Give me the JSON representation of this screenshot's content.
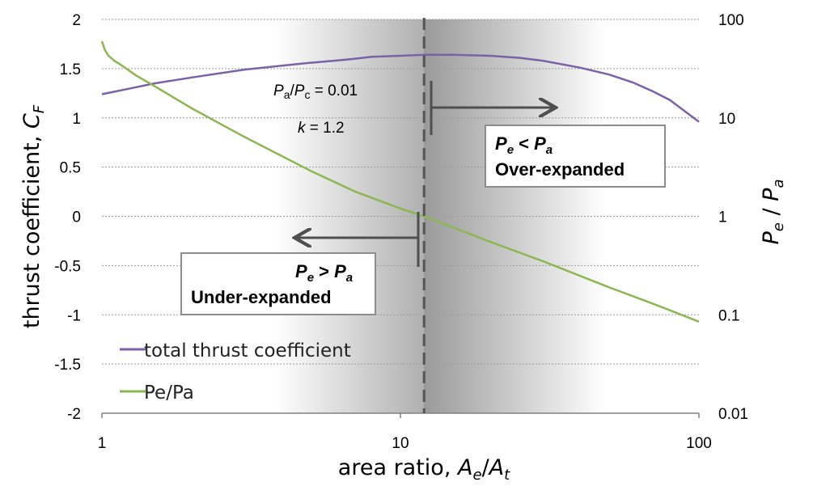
{
  "chart_data": {
    "type": "line",
    "title": "",
    "xlabel": "area ratio, A_e/A_t",
    "xlabel_parts": {
      "main": "area ratio, ",
      "var": "A",
      "sub1": "e",
      "slash": "/",
      "var2": "A",
      "sub2": "t"
    },
    "ylabel_left_parts": {
      "main": "thrust coefficient, ",
      "var": "C",
      "sub": "F"
    },
    "ylabel_right_parts": {
      "var": "P",
      "sub": "e",
      "slash": " / ",
      "var2": "P",
      "sub2": "a"
    },
    "x_scale": "log",
    "xlim": [
      1,
      100
    ],
    "x_ticks": [
      1,
      10,
      100
    ],
    "x_tick_labels": [
      "1",
      "10",
      "100"
    ],
    "y_left_lim": [
      -2,
      2
    ],
    "y_left_ticks": [
      2,
      1.5,
      1,
      0.5,
      0,
      -0.5,
      -1,
      -1.5,
      -2
    ],
    "y_left_tick_labels": [
      "2",
      "1.5",
      "1",
      "0.5",
      "0",
      "-0.5",
      "-1",
      "-1.5",
      "-2"
    ],
    "y_right_scale": "log",
    "y_right_lim": [
      0.01,
      100
    ],
    "y_right_ticks": [
      100,
      10,
      1,
      0.1,
      0.01
    ],
    "y_right_tick_labels": [
      "100",
      "10",
      "1",
      "0.1",
      "0.01"
    ],
    "grid": "horizontal dotted",
    "legend_position": "bottom-left",
    "series": [
      {
        "name": "total thrust coefficient",
        "axis": "left",
        "color": "#7b62a8",
        "x": [
          1,
          1.25,
          1.5,
          2,
          3,
          4,
          5,
          6,
          7,
          8,
          10,
          12,
          15,
          20,
          25,
          30,
          40,
          50,
          60,
          70,
          80,
          100
        ],
        "y": [
          1.24,
          1.3,
          1.35,
          1.41,
          1.49,
          1.53,
          1.56,
          1.58,
          1.6,
          1.62,
          1.63,
          1.64,
          1.64,
          1.63,
          1.61,
          1.58,
          1.51,
          1.44,
          1.36,
          1.27,
          1.18,
          0.96
        ]
      },
      {
        "name": "Pe/Pa",
        "axis": "right",
        "color": "#8db653",
        "x": [
          1,
          1.02,
          1.05,
          1.1,
          1.15,
          1.2,
          1.3,
          1.5,
          2,
          3,
          5,
          7,
          10,
          12,
          15,
          20,
          30,
          50,
          70,
          100
        ],
        "y": [
          60,
          50,
          43,
          38,
          35,
          32,
          27,
          21,
          12.5,
          6.4,
          2.9,
          1.8,
          1.2,
          1.0,
          0.77,
          0.55,
          0.35,
          0.19,
          0.13,
          0.085
        ]
      }
    ],
    "vertical_line": {
      "x": 12,
      "style": "dashed",
      "color": "#555555"
    },
    "annotations": {
      "pressure_ratio": {
        "var": "P",
        "sub": "a",
        "slash": "/",
        "var2": "P",
        "sub2": "c",
        "rest": " = 0.01"
      },
      "k_value": {
        "var": "k",
        "rest": " = 1.2"
      },
      "over_box": {
        "line1": {
          "var": "P",
          "sub": "e",
          "op": " < ",
          "var2": "P",
          "sub2": "a"
        },
        "line2": "Over-expanded"
      },
      "under_box": {
        "line1": {
          "var": "P",
          "sub": "e",
          "op": " > ",
          "var2": "P",
          "sub2": "a"
        },
        "line2": "Under-expanded"
      }
    }
  }
}
